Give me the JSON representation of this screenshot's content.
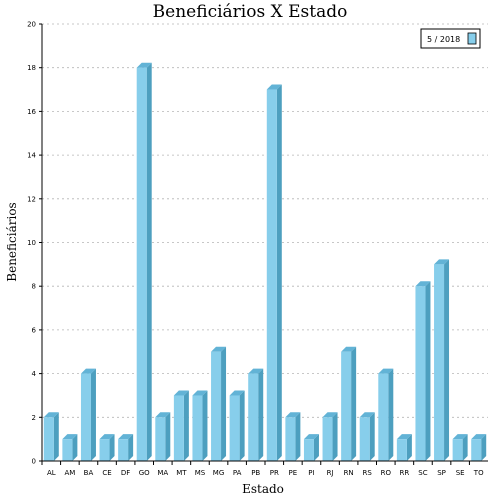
{
  "chart_data": {
    "type": "bar",
    "title": "Beneficiários X Estado",
    "xlabel": "Estado",
    "ylabel": "Beneficiários",
    "ylim": [
      0,
      20
    ],
    "yticks": [
      0,
      2,
      4,
      6,
      8,
      10,
      12,
      14,
      16,
      18,
      20
    ],
    "grid": true,
    "legend": {
      "placement": "top-right"
    },
    "categories": [
      "AL",
      "AM",
      "BA",
      "CE",
      "DF",
      "GO",
      "MA",
      "MT",
      "MS",
      "MG",
      "PA",
      "PB",
      "PR",
      "PE",
      "PI",
      "RJ",
      "RN",
      "RS",
      "RO",
      "RR",
      "SC",
      "SP",
      "SE",
      "TO"
    ],
    "series": [
      {
        "name": "5 / 2018",
        "color": "#87CEEB",
        "values": [
          2,
          1,
          4,
          1,
          1,
          18,
          2,
          3,
          3,
          5,
          3,
          4,
          17,
          2,
          1,
          2,
          5,
          2,
          4,
          1,
          8,
          9,
          1,
          1
        ]
      }
    ]
  }
}
